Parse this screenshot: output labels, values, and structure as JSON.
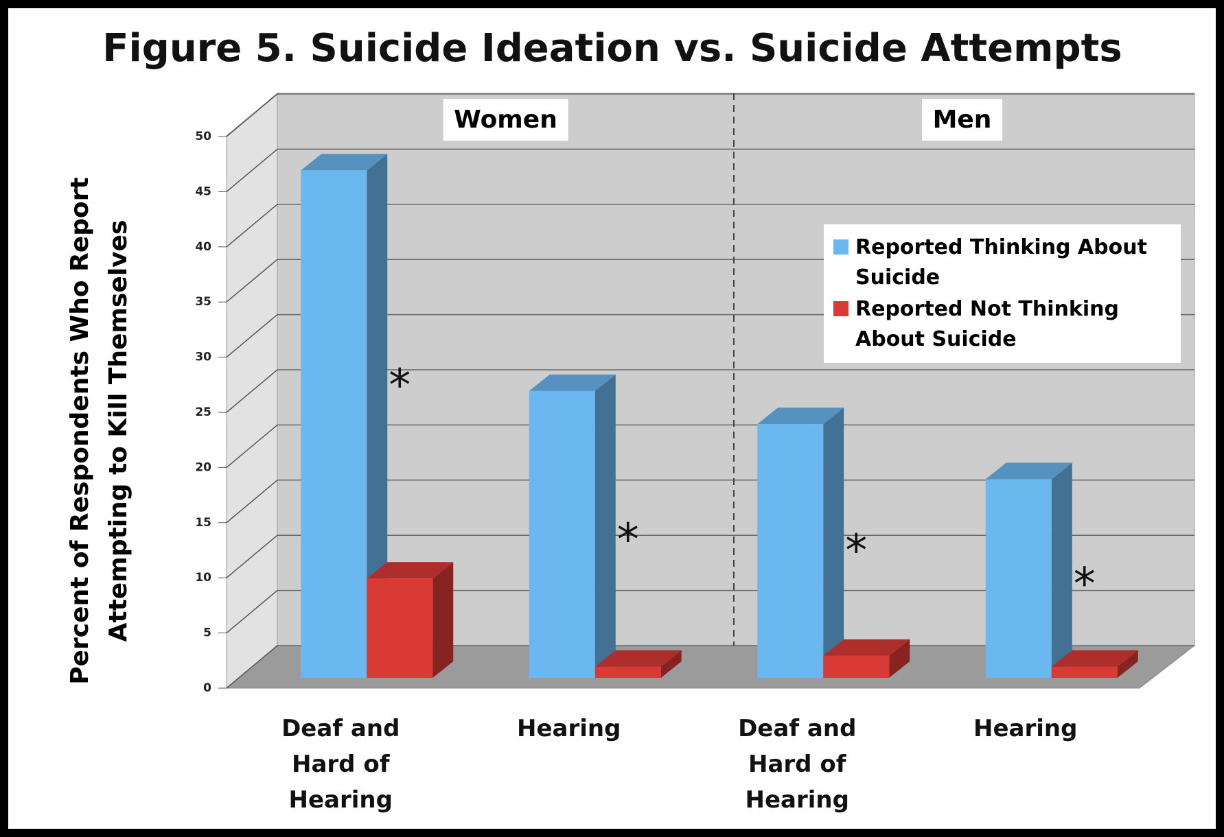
{
  "chart_data": {
    "type": "bar",
    "title": "Figure 5. Suicide Ideation vs. Suicide Attempts",
    "y_label": "Percent of Respondents Who Report Attempting to Kill Themselves",
    "groups": [
      "Women",
      "Men"
    ],
    "categories": [
      "Deaf and Hard of Hearing",
      "Hearing",
      "Deaf and Hard of Hearing",
      "Hearing"
    ],
    "series": [
      {
        "name": "Reported Thinking About Suicide",
        "color": "#6bb7ef",
        "values": [
          46,
          26,
          23,
          18
        ]
      },
      {
        "name": "Reported Not Thinking About Suicide",
        "color": "#d93a36",
        "values": [
          9,
          1,
          2,
          1
        ]
      }
    ],
    "annotations": [
      "*",
      "*",
      "*",
      "*"
    ],
    "ylim": [
      0,
      50
    ],
    "yticks": [
      0,
      5,
      10,
      15,
      20,
      25,
      30,
      35,
      40,
      45,
      50
    ],
    "grid": true,
    "legend": "upper right"
  }
}
